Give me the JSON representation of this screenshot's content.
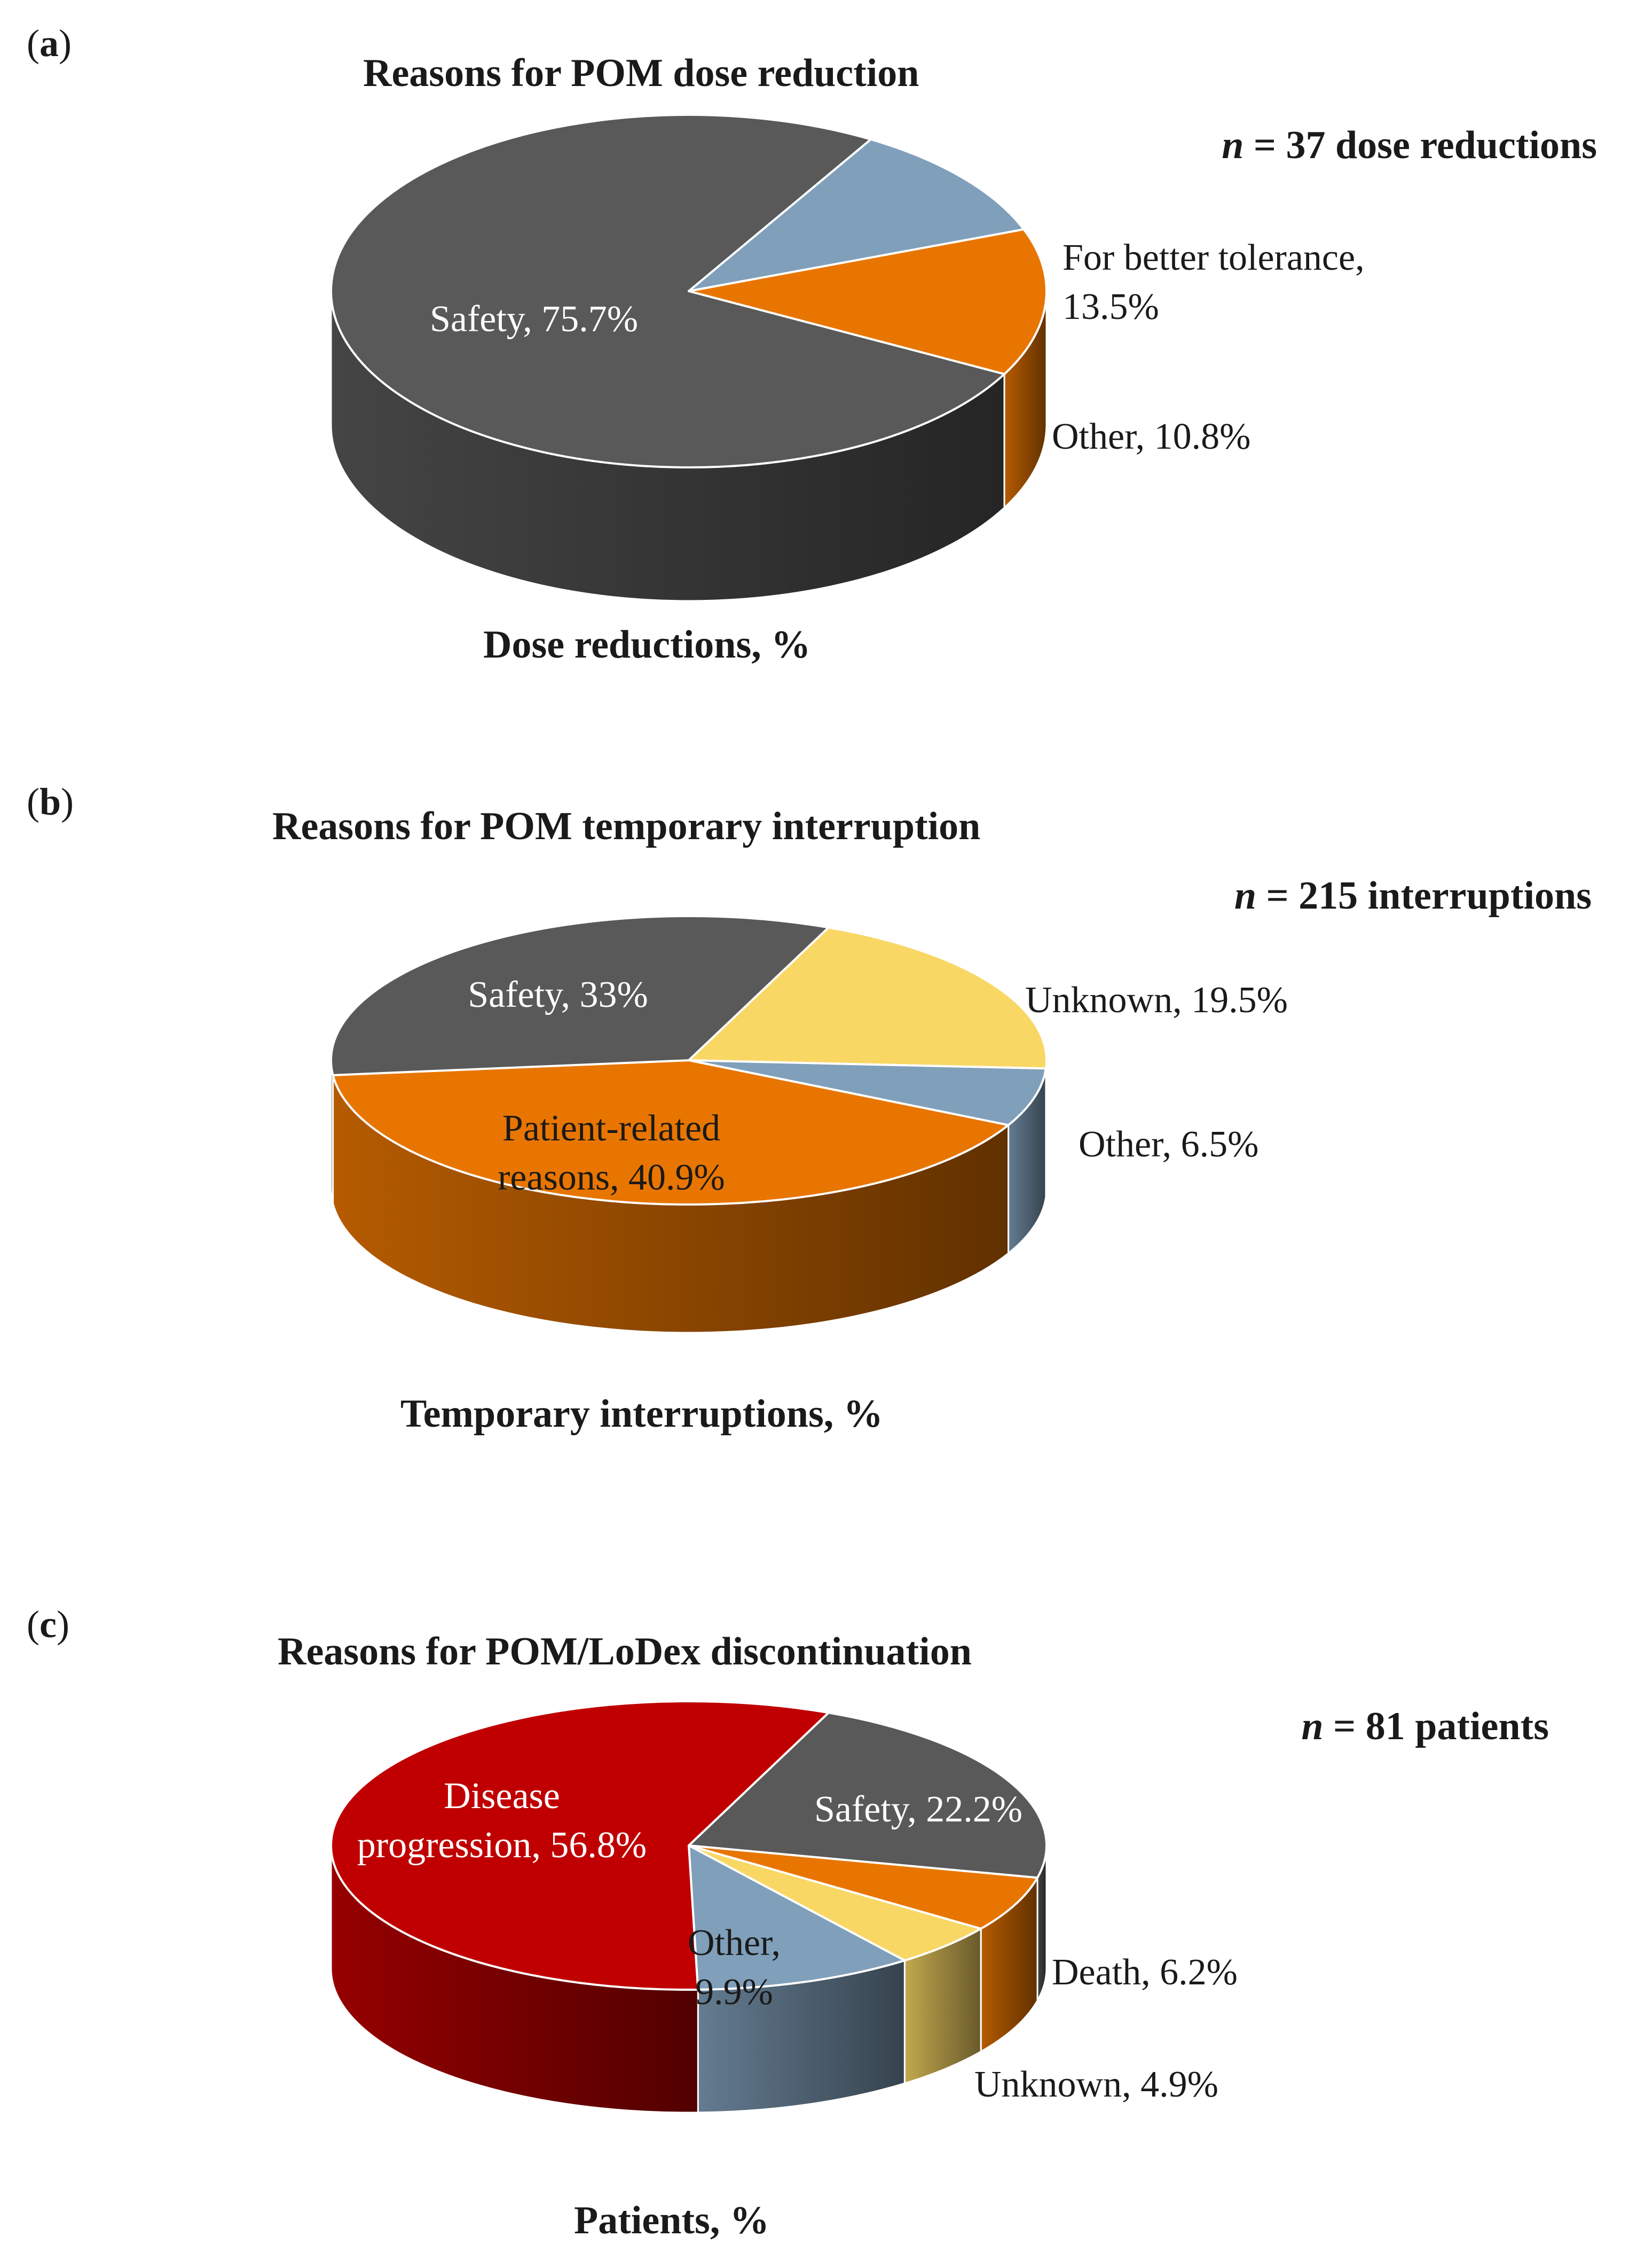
{
  "chart_data": [
    {
      "type": "pie",
      "panel_label": "a",
      "title": "Reasons for POM dose reduction",
      "n_label": {
        "n": "n",
        "text": " = 37 dose reductions"
      },
      "caption": "Dose reductions, %",
      "slices": [
        {
          "label": "Safety",
          "value": 75.7,
          "display": "Safety, 75.7%",
          "color": "#595959"
        },
        {
          "label": "For better tolerance",
          "value": 13.5,
          "display": "For better tolerance, 13.5%",
          "color": "#E87500"
        },
        {
          "label": "Other",
          "value": 10.8,
          "display": "Other, 10.8%",
          "color": "#809FBA"
        }
      ]
    },
    {
      "type": "pie",
      "panel_label": "b",
      "title": "Reasons for POM temporary interruption",
      "n_label": {
        "n": "n",
        "text": " = 215 interruptions"
      },
      "caption": "Temporary interruptions, %",
      "slices": [
        {
          "label": "Unknown",
          "value": 19.5,
          "display": "Unknown, 19.5%",
          "color": "#F9D765"
        },
        {
          "label": "Other",
          "value": 6.5,
          "display": "Other, 6.5%",
          "color": "#809FBA"
        },
        {
          "label": "Patient-related reasons",
          "value": 40.9,
          "display": "Patient-related reasons, 40.9%",
          "color": "#E87500"
        },
        {
          "label": "Safety",
          "value": 33,
          "display": "Safety, 33%",
          "color": "#595959"
        }
      ]
    },
    {
      "type": "pie",
      "panel_label": "c",
      "title": "Reasons for POM/LoDex discontinuation",
      "n_label": {
        "n": "n",
        "text": " = 81 patients"
      },
      "caption": "Patients, %",
      "slices": [
        {
          "label": "Safety",
          "value": 22.2,
          "display": "Safety, 22.2%",
          "color": "#595959"
        },
        {
          "label": "Death",
          "value": 6.2,
          "display": "Death, 6.2%",
          "color": "#E87500"
        },
        {
          "label": "Unknown",
          "value": 4.9,
          "display": "Unknown, 4.9%",
          "color": "#F9D765"
        },
        {
          "label": "Other",
          "value": 9.9,
          "display": "Other, 9.9%",
          "color": "#809FBA"
        },
        {
          "label": "Disease progression",
          "value": 56.8,
          "display": "Disease progression, 56.8%",
          "color": "#C00000"
        }
      ]
    }
  ]
}
